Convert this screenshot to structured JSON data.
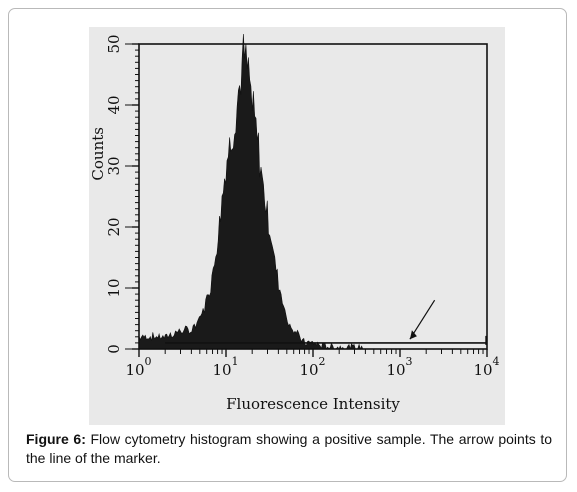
{
  "figure": {
    "caption_label": "Figure 6:",
    "caption_text": "Flow cytometry histogram showing a positive sample. The arrow points to the line of the marker."
  },
  "chart_data": {
    "type": "histogram",
    "xlabel": "Fluorescence Intensity",
    "ylabel": "Counts",
    "x_scale": "log",
    "xlim": [
      1,
      10000
    ],
    "ylim": [
      0,
      50
    ],
    "x_ticks": [
      {
        "base": "10",
        "exp": "0"
      },
      {
        "base": "10",
        "exp": "1"
      },
      {
        "base": "10",
        "exp": "2"
      },
      {
        "base": "10",
        "exp": "3"
      },
      {
        "base": "10",
        "exp": "4"
      }
    ],
    "y_ticks": [
      "0",
      "10",
      "20",
      "30",
      "40",
      "50"
    ],
    "histogram": {
      "x": [
        1,
        1.5,
        2,
        3,
        4,
        5,
        6,
        7,
        8,
        9,
        10,
        12,
        14,
        16,
        18,
        20,
        23,
        26,
        30,
        35,
        40,
        45,
        50,
        60,
        70,
        80,
        100,
        130,
        200,
        400
      ],
      "counts": [
        2,
        2,
        2,
        3,
        3,
        5,
        8,
        12,
        18,
        25,
        30,
        36,
        42,
        48,
        45,
        40,
        34,
        28,
        22,
        16,
        11,
        8,
        5,
        3,
        2,
        1,
        1,
        0.5,
        0.3,
        0.2
      ]
    },
    "marker": {
      "x_start": 2,
      "x_end": 10000,
      "y": 1
    }
  }
}
